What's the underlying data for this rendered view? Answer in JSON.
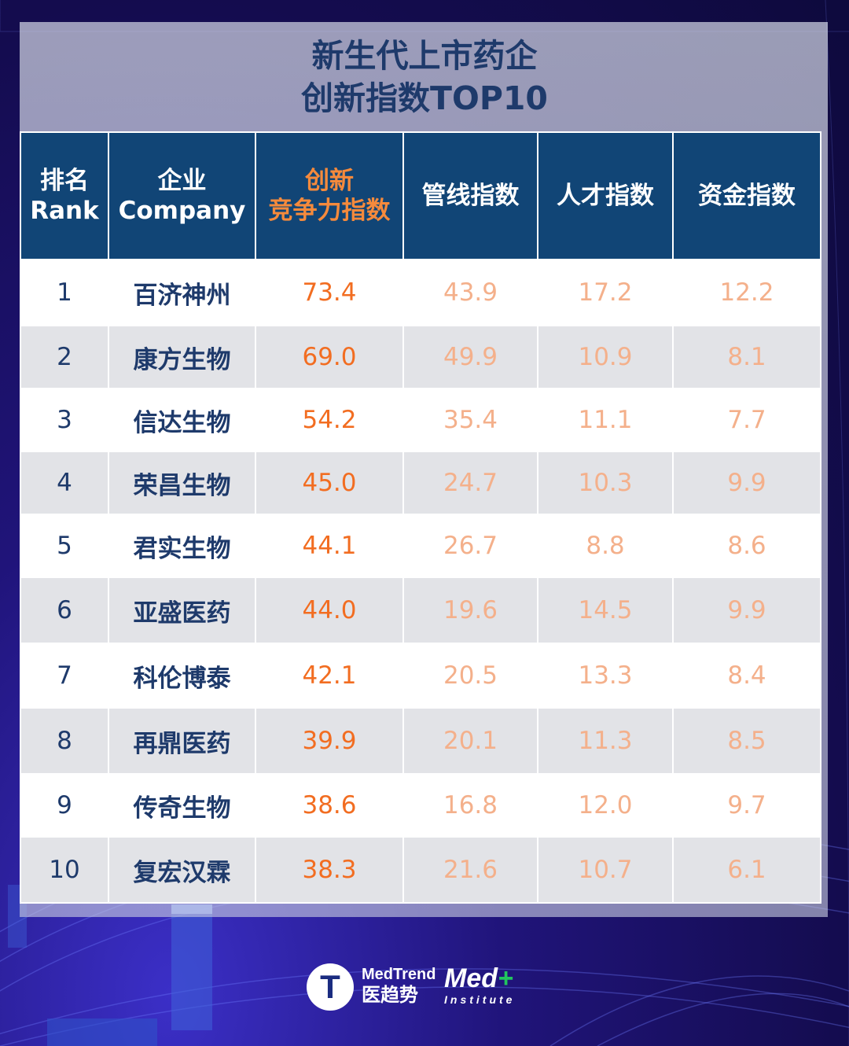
{
  "title": {
    "line1": "新生代上市药企",
    "line2": "创新指数TOP10"
  },
  "table": {
    "headers": [
      {
        "line1": "排名",
        "line2": "Rank"
      },
      {
        "line1": "企业",
        "line2": "Company"
      },
      {
        "line1": "创新",
        "line2": "竞争力指数"
      },
      {
        "line1": "管线指数",
        "line2": ""
      },
      {
        "line1": "人才指数",
        "line2": ""
      },
      {
        "line1": "资金指数",
        "line2": ""
      }
    ],
    "rows": [
      {
        "rank": "1",
        "company": "百济神州",
        "innovation": "73.4",
        "pipeline": "43.9",
        "talent": "17.2",
        "capital": "12.2"
      },
      {
        "rank": "2",
        "company": "康方生物",
        "innovation": "69.0",
        "pipeline": "49.9",
        "talent": "10.9",
        "capital": "8.1"
      },
      {
        "rank": "3",
        "company": "信达生物",
        "innovation": "54.2",
        "pipeline": "35.4",
        "talent": "11.1",
        "capital": "7.7"
      },
      {
        "rank": "4",
        "company": "荣昌生物",
        "innovation": "45.0",
        "pipeline": "24.7",
        "talent": "10.3",
        "capital": "9.9"
      },
      {
        "rank": "5",
        "company": "君实生物",
        "innovation": "44.1",
        "pipeline": "26.7",
        "talent": "8.8",
        "capital": "8.6"
      },
      {
        "rank": "6",
        "company": "亚盛医药",
        "innovation": "44.0",
        "pipeline": "19.6",
        "talent": "14.5",
        "capital": "9.9"
      },
      {
        "rank": "7",
        "company": "科伦博泰",
        "innovation": "42.1",
        "pipeline": "20.5",
        "talent": "13.3",
        "capital": "8.4"
      },
      {
        "rank": "8",
        "company": "再鼎医药",
        "innovation": "39.9",
        "pipeline": "20.1",
        "talent": "11.3",
        "capital": "8.5"
      },
      {
        "rank": "9",
        "company": "传奇生物",
        "innovation": "38.6",
        "pipeline": "16.8",
        "talent": "12.0",
        "capital": "9.7"
      },
      {
        "rank": "10",
        "company": "复宏汉霖",
        "innovation": "38.3",
        "pipeline": "21.6",
        "talent": "10.7",
        "capital": "6.1"
      }
    ]
  },
  "logos": {
    "medtrend_en": "MedTrend",
    "medtrend_zh": "医趋势",
    "medtrend_icon": "T",
    "med_main": "Med",
    "med_plus": "+",
    "med_sub": "Institute"
  },
  "colors": {
    "header_bg": "#114576",
    "title": "#1e3a6b",
    "innovation_value": "#f26d21",
    "sub_index_value": "#f4b08b",
    "highlight_header": "#f58a3c"
  }
}
